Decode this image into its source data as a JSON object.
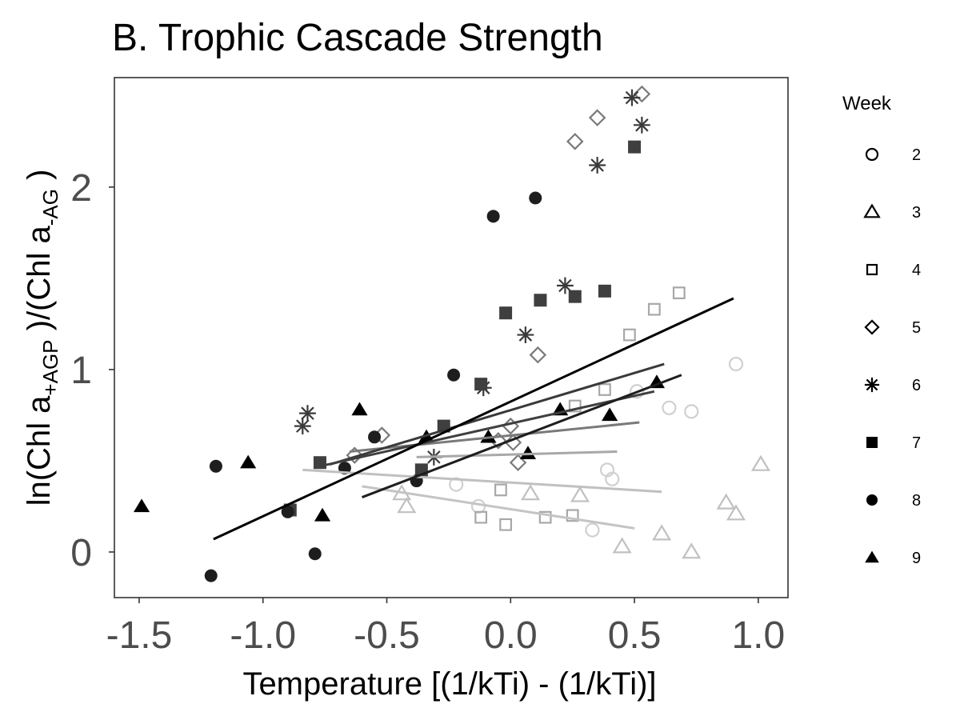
{
  "chart_data": {
    "type": "scatter",
    "title": "B. Trophic Cascade Strength",
    "xlabel": "Temperature [(1/kTi) - (1/kTi)]",
    "ylabel": {
      "part1": "ln(Chl a",
      "sub1": "+AGP",
      "part2": " )/(Chl a",
      "sub2": "-AG",
      "part3": " )"
    },
    "xlim": [
      -1.6,
      1.12
    ],
    "ylim": [
      -0.25,
      2.6
    ],
    "x_ticks": [
      -1.5,
      -1.0,
      -0.5,
      0.0,
      0.5,
      1.0
    ],
    "x_tick_labels": [
      "-1.5",
      "-1.0",
      "-0.5",
      "0.0",
      "0.5",
      "1.0"
    ],
    "y_ticks": [
      0,
      1,
      2
    ],
    "y_tick_labels": [
      "0",
      "1",
      "2"
    ],
    "grid": false,
    "legend": {
      "title": "Week",
      "position": "right"
    },
    "series": [
      {
        "name": "2",
        "shape": "circle-open",
        "color": "#d0d0d0",
        "points": [
          [
            -0.22,
            0.37
          ],
          [
            -0.13,
            0.25
          ],
          [
            0.33,
            0.12
          ],
          [
            0.39,
            0.45
          ],
          [
            0.41,
            0.4
          ],
          [
            0.51,
            0.88
          ],
          [
            0.64,
            0.79
          ],
          [
            0.73,
            0.77
          ],
          [
            0.91,
            1.03
          ]
        ],
        "fit": [
          [
            -0.6,
            0.36
          ],
          [
            0.5,
            0.13
          ]
        ]
      },
      {
        "name": "3",
        "shape": "triangle-open",
        "color": "#c0c0c0",
        "points": [
          [
            -0.44,
            0.32
          ],
          [
            -0.42,
            0.25
          ],
          [
            0.08,
            0.32
          ],
          [
            0.28,
            0.31
          ],
          [
            0.45,
            0.03
          ],
          [
            0.61,
            0.1
          ],
          [
            0.73,
            0.0
          ],
          [
            0.87,
            0.27
          ],
          [
            0.91,
            0.21
          ],
          [
            1.01,
            0.48
          ]
        ],
        "fit": [
          [
            -0.84,
            0.45
          ],
          [
            0.61,
            0.33
          ]
        ]
      },
      {
        "name": "4",
        "shape": "square-open",
        "color": "#a8a8a8",
        "points": [
          [
            -0.12,
            0.19
          ],
          [
            -0.04,
            0.34
          ],
          [
            -0.02,
            0.15
          ],
          [
            0.14,
            0.19
          ],
          [
            0.25,
            0.2
          ],
          [
            0.26,
            0.8
          ],
          [
            0.38,
            0.89
          ],
          [
            0.48,
            1.19
          ],
          [
            0.58,
            1.33
          ],
          [
            0.68,
            1.42
          ]
        ],
        "fit": [
          [
            -0.38,
            0.52
          ],
          [
            0.43,
            0.55
          ]
        ]
      },
      {
        "name": "5",
        "shape": "diamond-open",
        "color": "#7a7a7a",
        "points": [
          [
            -0.52,
            0.64
          ],
          [
            -0.63,
            0.53
          ],
          [
            -0.05,
            0.61
          ],
          [
            0.0,
            0.69
          ],
          [
            0.01,
            0.6
          ],
          [
            0.03,
            0.49
          ],
          [
            0.11,
            1.08
          ],
          [
            0.26,
            2.25
          ],
          [
            0.35,
            2.38
          ],
          [
            0.53,
            2.51
          ]
        ],
        "fit": [
          [
            -0.65,
            0.55
          ],
          [
            0.52,
            0.71
          ]
        ]
      },
      {
        "name": "6",
        "shape": "asterisk",
        "color": "#3a3a3a",
        "points": [
          [
            -0.84,
            0.69
          ],
          [
            -0.82,
            0.76
          ],
          [
            -0.31,
            0.52
          ],
          [
            -0.11,
            0.9
          ],
          [
            0.06,
            1.19
          ],
          [
            0.22,
            1.46
          ],
          [
            0.35,
            2.12
          ],
          [
            0.49,
            2.49
          ],
          [
            0.53,
            2.34
          ]
        ],
        "fit": [
          [
            -0.73,
            0.48
          ],
          [
            0.62,
            1.03
          ]
        ]
      },
      {
        "name": "7",
        "shape": "square-filled",
        "color": "#3f3f3f",
        "points": [
          [
            -0.89,
            0.23
          ],
          [
            -0.77,
            0.49
          ],
          [
            -0.36,
            0.45
          ],
          [
            -0.27,
            0.69
          ],
          [
            -0.12,
            0.92
          ],
          [
            -0.02,
            1.31
          ],
          [
            0.12,
            1.38
          ],
          [
            0.26,
            1.4
          ],
          [
            0.38,
            1.43
          ],
          [
            0.5,
            2.22
          ]
        ],
        "fit": [
          [
            -0.77,
            0.47
          ],
          [
            0.58,
            0.88
          ]
        ]
      },
      {
        "name": "8",
        "shape": "circle-filled",
        "color": "#1e1e1e",
        "points": [
          [
            -1.21,
            -0.13
          ],
          [
            -1.19,
            0.47
          ],
          [
            -0.9,
            0.22
          ],
          [
            -0.79,
            -0.01
          ],
          [
            -0.67,
            0.46
          ],
          [
            -0.55,
            0.63
          ],
          [
            -0.38,
            0.39
          ],
          [
            -0.23,
            0.97
          ],
          [
            -0.07,
            1.84
          ],
          [
            0.1,
            1.94
          ]
        ],
        "fit": [
          [
            -0.6,
            0.3
          ],
          [
            0.69,
            0.97
          ]
        ]
      },
      {
        "name": "9",
        "shape": "triangle-filled",
        "color": "#000000",
        "points": [
          [
            -1.49,
            0.25
          ],
          [
            -1.06,
            0.49
          ],
          [
            -0.76,
            0.2
          ],
          [
            -0.61,
            0.78
          ],
          [
            -0.34,
            0.63
          ],
          [
            -0.09,
            0.63
          ],
          [
            0.07,
            0.54
          ],
          [
            0.2,
            0.78
          ],
          [
            0.4,
            0.75
          ],
          [
            0.59,
            0.93
          ]
        ],
        "fit": [
          [
            -1.2,
            0.07
          ],
          [
            0.9,
            1.39
          ]
        ]
      }
    ]
  }
}
